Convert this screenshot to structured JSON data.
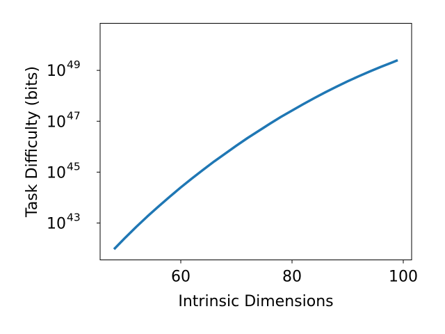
{
  "chart_data": {
    "type": "line",
    "title": "",
    "xlabel": "Intrinsic Dimensions",
    "ylabel": "Task Difficulty (bits)",
    "y_scale": "log",
    "xlim": [
      45.5,
      101.5
    ],
    "ylim_log10": [
      41.55,
      50.85
    ],
    "grid": false,
    "legend": "none",
    "x_ticks": [
      {
        "value": 60,
        "label": "60"
      },
      {
        "value": 80,
        "label": "80"
      },
      {
        "value": 100,
        "label": "100"
      }
    ],
    "y_ticks": [
      {
        "log10": 43,
        "base": "10",
        "exponent": "43"
      },
      {
        "log10": 45,
        "base": "10",
        "exponent": "45"
      },
      {
        "log10": 47,
        "base": "10",
        "exponent": "47"
      },
      {
        "log10": 49,
        "base": "10",
        "exponent": "49"
      }
    ],
    "series": [
      {
        "color": "#1f77b4",
        "x": [
          48,
          50,
          52,
          54,
          56,
          58,
          60,
          62,
          64,
          66,
          68,
          70,
          72,
          74,
          76,
          78,
          80,
          82,
          84,
          86,
          88,
          90,
          92,
          94,
          96,
          98,
          99
        ],
        "y_log10": [
          41.97,
          42.42,
          42.85,
          43.26,
          43.65,
          44.03,
          44.4,
          44.75,
          45.09,
          45.42,
          45.73,
          46.04,
          46.34,
          46.62,
          46.9,
          47.17,
          47.42,
          47.67,
          47.91,
          48.14,
          48.36,
          48.57,
          48.77,
          48.96,
          49.14,
          49.31,
          49.4
        ]
      }
    ]
  }
}
